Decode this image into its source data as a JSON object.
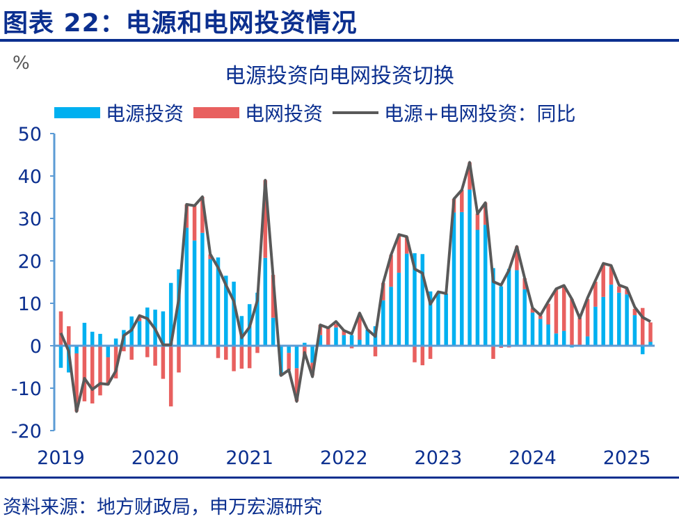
{
  "header": {
    "title": "图表 22：电源和电网投资情况"
  },
  "source": "资料来源：地方财政局，申万宏源研究",
  "colors": {
    "power_source": "#00b0f0",
    "grid": "#e8605f",
    "total_line": "#595959",
    "axis": "#5b9bd5",
    "text": "#0b2f8f"
  },
  "chart_data": {
    "type": "bar",
    "title": "电源投资向电网投资切换",
    "ylabel": "%",
    "xlabel": "",
    "ylim": [
      -20,
      50
    ],
    "yticks": [
      "50",
      "40",
      "30",
      "20",
      "10",
      "0",
      "-10",
      "-20"
    ],
    "ytick_values": [
      50,
      40,
      30,
      20,
      10,
      0,
      -10,
      -20
    ],
    "xtick_labels": [
      "2019",
      "2020",
      "2021",
      "2022",
      "2023",
      "2024",
      "2025"
    ],
    "grid": false,
    "legend": "top",
    "stacked": true,
    "categories": [
      "2019-01",
      "2019-02",
      "2019-03",
      "2019-04",
      "2019-05",
      "2019-06",
      "2019-07",
      "2019-08",
      "2019-09",
      "2019-10",
      "2019-11",
      "2019-12",
      "2020-01",
      "2020-02",
      "2020-03",
      "2020-04",
      "2020-05",
      "2020-06",
      "2020-07",
      "2020-08",
      "2020-09",
      "2020-10",
      "2020-11",
      "2020-12",
      "2021-01",
      "2021-02",
      "2021-03",
      "2021-04",
      "2021-05",
      "2021-06",
      "2021-07",
      "2021-08",
      "2021-09",
      "2021-10",
      "2021-11",
      "2021-12",
      "2022-01",
      "2022-02",
      "2022-03",
      "2022-04",
      "2022-05",
      "2022-06",
      "2022-07",
      "2022-08",
      "2022-09",
      "2022-10",
      "2022-11",
      "2022-12",
      "2023-01",
      "2023-02",
      "2023-03",
      "2023-04",
      "2023-05",
      "2023-06",
      "2023-07",
      "2023-08",
      "2023-09",
      "2023-10",
      "2023-11",
      "2023-12",
      "2024-01",
      "2024-02",
      "2024-03",
      "2024-04",
      "2024-05",
      "2024-06",
      "2024-07",
      "2024-08",
      "2024-09",
      "2024-10",
      "2024-11",
      "2024-12",
      "2025-01",
      "2025-02",
      "2025-03",
      "2025-04"
    ],
    "series": [
      {
        "name": "电源投资",
        "kind": "bar",
        "values": [
          -5.2,
          -6.3,
          -1.8,
          5.4,
          3.3,
          2.8,
          -2.7,
          1.7,
          3.7,
          6.9,
          5.8,
          9.0,
          8.5,
          8.1,
          14.8,
          18.0,
          27.8,
          24.8,
          26.6,
          20.4,
          20.8,
          16.5,
          15.1,
          7.0,
          9.8,
          12.5,
          20.7,
          6.6,
          -6.8,
          -1.7,
          -5.3,
          0.7,
          -4.0,
          2.5,
          0.2,
          4.3,
          2.5,
          2.5,
          1.4,
          3.8,
          4.6,
          10.7,
          13.9,
          17.2,
          21.7,
          21.8,
          21.6,
          12.8,
          12.4,
          12.3,
          31.4,
          31.5,
          36.8,
          27.3,
          28.5,
          18.3,
          14.0,
          18.1,
          17.8,
          13.3,
          7.8,
          6.3,
          5.0,
          2.9,
          3.5,
          -0.4,
          0.0,
          2.2,
          9.2,
          11.5,
          14.4,
          12.5,
          12.1,
          7.2,
          -2.0,
          0.9
        ]
      },
      {
        "name": "电网投资",
        "kind": "bar",
        "values": [
          8.1,
          4.6,
          -13.7,
          -13.1,
          -13.6,
          -11.7,
          -6.5,
          -7.7,
          -1.3,
          -3.3,
          0.9,
          -2.7,
          -4.7,
          -7.8,
          -14.3,
          -6.3,
          5.5,
          8.2,
          8.5,
          1.1,
          -2.9,
          -3.3,
          -6.0,
          -5.4,
          -5.3,
          -1.7,
          18.3,
          10.1,
          -0.2,
          -4.0,
          -7.8,
          -2.3,
          -3.0,
          2.4,
          4.0,
          0.8,
          1.1,
          -0.6,
          5.7,
          0.0,
          -2.5,
          4.1,
          7.5,
          8.8,
          3.9,
          -3.9,
          -4.6,
          -3.1,
          0.0,
          0.0,
          3.2,
          5.2,
          6.4,
          3.8,
          5.2,
          -3.1,
          -0.5,
          -0.4,
          5.6,
          2.6,
          1.0,
          0.8,
          4.9,
          10.3,
          10.5,
          11.0,
          6.6,
          8.8,
          5.9,
          7.7,
          4.2,
          1.5,
          1.3,
          1.5,
          8.9,
          4.6
        ]
      },
      {
        "name": "电源+电网投资：同比",
        "kind": "line",
        "values": [
          3.0,
          -1.3,
          -15.5,
          -7.7,
          -10.3,
          -8.9,
          -9.1,
          -5.9,
          2.4,
          3.7,
          7.1,
          6.4,
          3.9,
          0.2,
          0.2,
          11.0,
          33.3,
          33.0,
          35.1,
          21.6,
          18.4,
          14.3,
          10.5,
          1.9,
          4.4,
          10.7,
          39.0,
          16.3,
          -7.0,
          -5.7,
          -13.1,
          -1.6,
          -7.3,
          4.9,
          4.2,
          5.7,
          3.6,
          2.8,
          7.7,
          3.8,
          2.2,
          14.8,
          21.4,
          26.2,
          25.7,
          18.1,
          17.1,
          9.8,
          12.7,
          12.3,
          34.6,
          36.7,
          43.2,
          31.1,
          33.7,
          15.1,
          14.3,
          17.8,
          23.4,
          15.9,
          8.9,
          7.2,
          10.4,
          13.4,
          14.2,
          11.0,
          6.5,
          11.3,
          15.4,
          19.4,
          18.9,
          14.3,
          13.6,
          9.1,
          6.7,
          5.7
        ]
      }
    ]
  }
}
